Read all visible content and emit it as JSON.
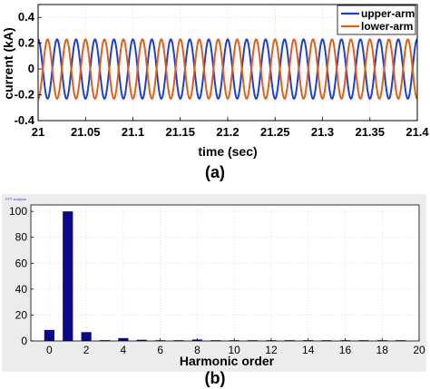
{
  "chart_data": [
    {
      "type": "line",
      "panel": "(a)",
      "xlabel": "time (sec)",
      "ylabel": "current (kA)",
      "xlim": [
        21,
        21.4
      ],
      "ylim": [
        -0.4,
        0.5
      ],
      "x_ticks": [
        "21",
        "21.05",
        "21.1",
        "21.15",
        "21.2",
        "21.25",
        "21.3",
        "21.35",
        "21.4"
      ],
      "y_ticks": [
        "-0.4",
        "-0.2",
        "0",
        "0.2",
        "0.4"
      ],
      "grid": true,
      "legend_position": "top-right",
      "series": [
        {
          "name": "upper-arm",
          "color": "#1f3fd0",
          "amplitude": 0.23,
          "offset": 0.0,
          "frequency_hz": 50,
          "phase_deg": 90
        },
        {
          "name": "lower-arm",
          "color": "#e0601a",
          "amplitude": 0.23,
          "offset": 0.0,
          "frequency_hz": 50,
          "phase_deg": -90
        }
      ]
    },
    {
      "type": "bar",
      "panel": "(b)",
      "header_text": "FFT analysis",
      "xlabel": "Harmonic order",
      "ylabel": "",
      "xlim": [
        -1,
        20
      ],
      "ylim": [
        0,
        105
      ],
      "x_ticks": [
        "0",
        "2",
        "4",
        "6",
        "8",
        "10",
        "12",
        "14",
        "16",
        "18",
        "20"
      ],
      "y_ticks": [
        "0",
        "20",
        "40",
        "60",
        "80",
        "100"
      ],
      "grid": true,
      "bar_color": "#0a0a8a",
      "categories": [
        0,
        1,
        2,
        3,
        4,
        5,
        6,
        7,
        8,
        9,
        10,
        11,
        12,
        13,
        14,
        15,
        16,
        17,
        18,
        19
      ],
      "values": [
        8.5,
        100,
        6.8,
        0.6,
        2.2,
        0.9,
        0.4,
        0.3,
        1.1,
        0.2,
        0.2,
        0.1,
        0.2,
        0.1,
        0.6,
        0.1,
        0.2,
        0.1,
        0.2,
        0.1
      ]
    }
  ]
}
